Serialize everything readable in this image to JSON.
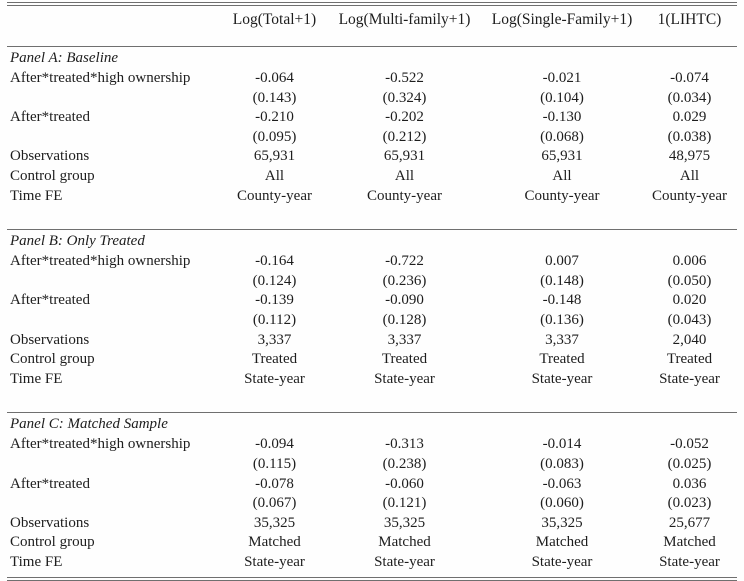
{
  "table": {
    "columns": [
      "",
      "Log(Total+1)",
      "Log(Multi-family+1)",
      "Log(Single-Family+1)",
      "1(LIHTC)"
    ],
    "panels": [
      {
        "title": "Panel A: Baseline",
        "rows": [
          {
            "label": "After*treated*high ownership",
            "values": [
              "-0.064",
              "-0.522",
              "-0.021",
              "-0.074"
            ]
          },
          {
            "label": "",
            "values": [
              "(0.143)",
              "(0.324)",
              "(0.104)",
              "(0.034)"
            ]
          },
          {
            "label": "After*treated",
            "values": [
              "-0.210",
              "-0.202",
              "-0.130",
              "0.029"
            ]
          },
          {
            "label": "",
            "values": [
              "(0.095)",
              "(0.212)",
              "(0.068)",
              "(0.038)"
            ]
          },
          {
            "label": "Observations",
            "values": [
              "65,931",
              "65,931",
              "65,931",
              "48,975"
            ]
          },
          {
            "label": "Control group",
            "values": [
              "All",
              "All",
              "All",
              "All"
            ]
          },
          {
            "label": "Time FE",
            "values": [
              "County-year",
              "County-year",
              "County-year",
              "County-year"
            ]
          }
        ]
      },
      {
        "title": "Panel B: Only Treated",
        "rows": [
          {
            "label": "After*treated*high ownership",
            "values": [
              "-0.164",
              "-0.722",
              "0.007",
              "0.006"
            ]
          },
          {
            "label": "",
            "values": [
              "(0.124)",
              "(0.236)",
              "(0.148)",
              "(0.050)"
            ]
          },
          {
            "label": "After*treated",
            "values": [
              "-0.139",
              "-0.090",
              "-0.148",
              "0.020"
            ]
          },
          {
            "label": "",
            "values": [
              "(0.112)",
              "(0.128)",
              "(0.136)",
              "(0.043)"
            ]
          },
          {
            "label": "Observations",
            "values": [
              "3,337",
              "3,337",
              "3,337",
              "2,040"
            ]
          },
          {
            "label": "Control group",
            "values": [
              "Treated",
              "Treated",
              "Treated",
              "Treated"
            ]
          },
          {
            "label": "Time FE",
            "values": [
              "State-year",
              "State-year",
              "State-year",
              "State-year"
            ]
          }
        ]
      },
      {
        "title": "Panel C: Matched Sample",
        "rows": [
          {
            "label": "After*treated*high ownership",
            "values": [
              "-0.094",
              "-0.313",
              "-0.014",
              "-0.052"
            ]
          },
          {
            "label": "",
            "values": [
              "(0.115)",
              "(0.238)",
              "(0.083)",
              "(0.025)"
            ]
          },
          {
            "label": "After*treated",
            "values": [
              "-0.078",
              "-0.060",
              "-0.063",
              "0.036"
            ]
          },
          {
            "label": "",
            "values": [
              "(0.067)",
              "(0.121)",
              "(0.060)",
              "(0.023)"
            ]
          },
          {
            "label": "Observations",
            "values": [
              "35,325",
              "35,325",
              "35,325",
              "25,677"
            ]
          },
          {
            "label": "Control group",
            "values": [
              "Matched",
              "Matched",
              "Matched",
              "Matched"
            ]
          },
          {
            "label": "Time FE",
            "values": [
              "State-year",
              "State-year",
              "State-year",
              "State-year"
            ]
          }
        ]
      }
    ]
  }
}
